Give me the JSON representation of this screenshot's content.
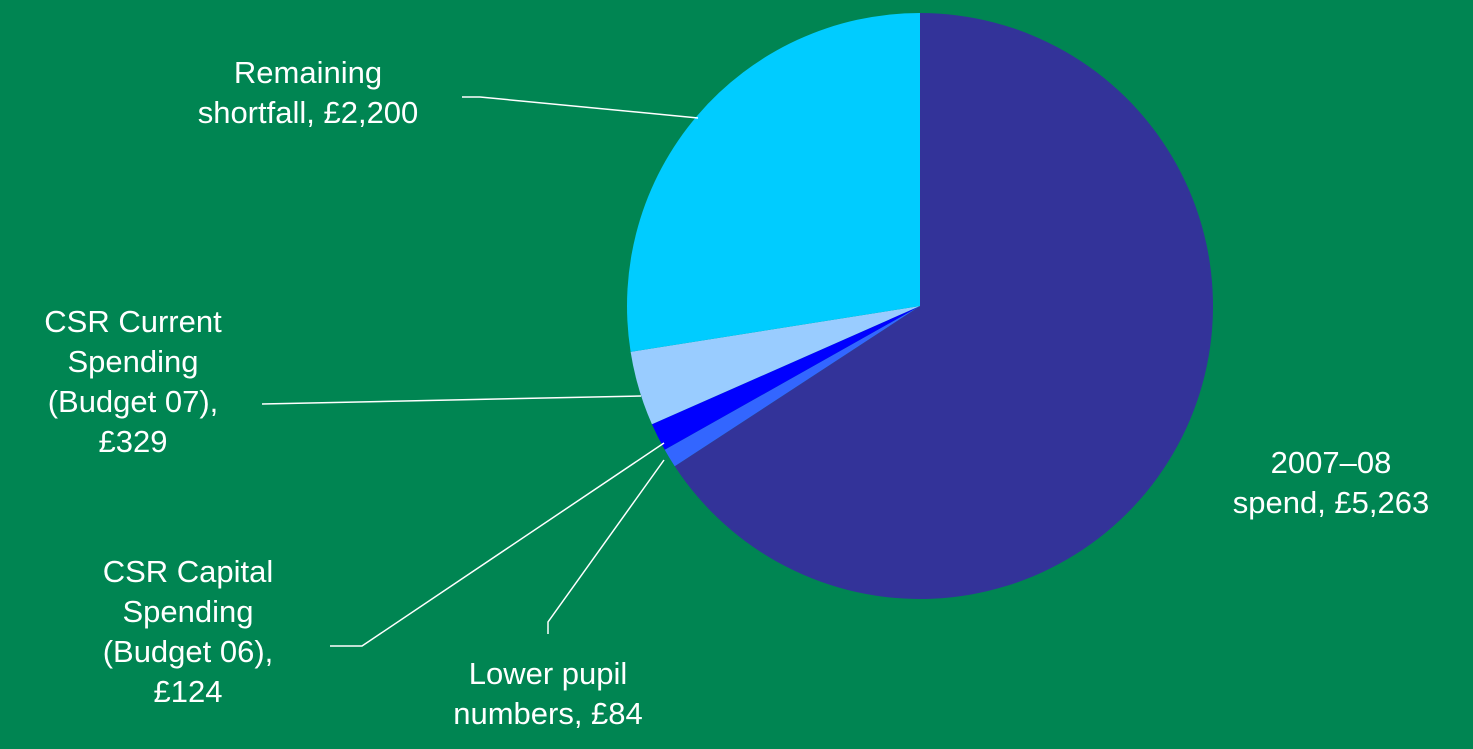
{
  "chart_data": {
    "type": "pie",
    "slices": [
      {
        "name": "2007–08 spend",
        "value": 5263,
        "color": "#333399",
        "label": [
          "2007–08",
          "spend, £5,263"
        ]
      },
      {
        "name": "Lower pupil numbers",
        "value": 84,
        "color": "#3366ff",
        "label": [
          "Lower pupil",
          "numbers, £84"
        ]
      },
      {
        "name": "CSR Capital Spending (Budget 06)",
        "value": 124,
        "color": "#0000ff",
        "label": [
          "CSR Capital",
          "Spending",
          "(Budget 06),",
          "£124"
        ]
      },
      {
        "name": "CSR Current Spending (Budget 07)",
        "value": 329,
        "color": "#99ccff",
        "label": [
          "CSR Current",
          "Spending",
          "(Budget 07),",
          "£329"
        ]
      },
      {
        "name": "Remaining shortfall",
        "value": 2200,
        "color": "#00ccff",
        "label": [
          "Remaining",
          "shortfall, £2,200"
        ]
      }
    ],
    "legend": "none",
    "background": "#008552",
    "label_color": "#ffffff"
  }
}
